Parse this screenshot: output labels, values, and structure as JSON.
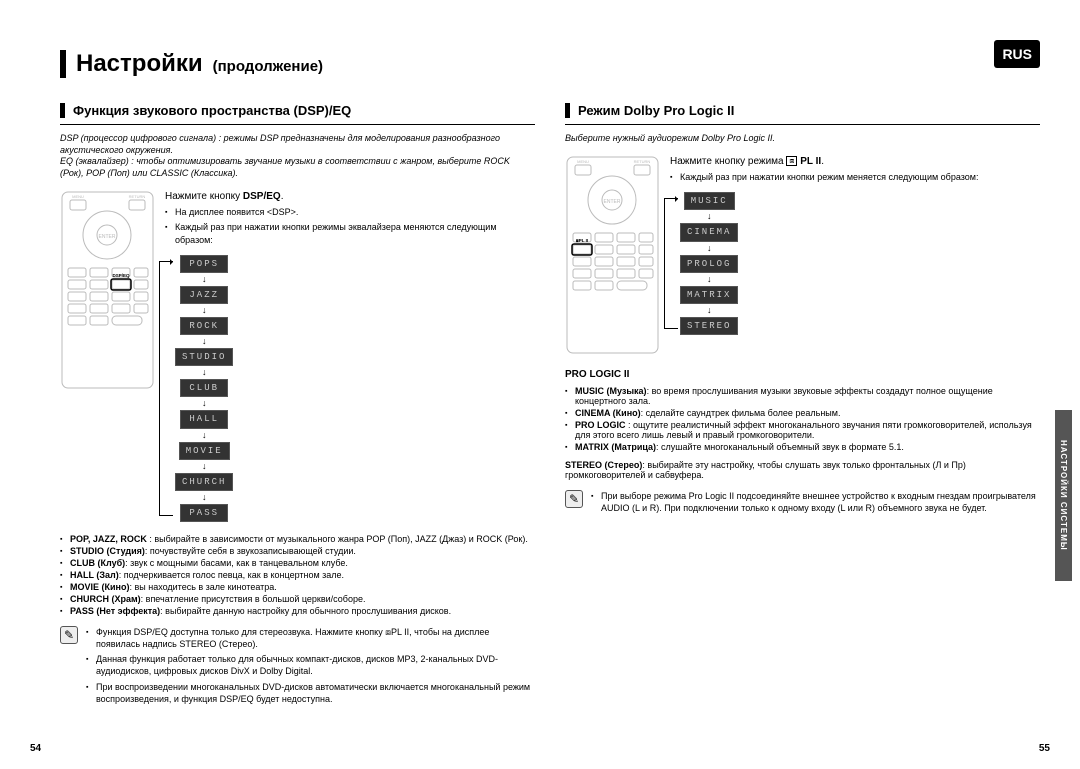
{
  "lang_badge": "RUS",
  "title_main": "Настройки",
  "title_sub": "(продолжение)",
  "side_tab": "НАСТРОЙКИ СИСТЕМЫ",
  "page_left": "54",
  "page_right": "55",
  "left": {
    "heading": "Функция звукового пространства (DSP)/EQ",
    "intro1": "DSP (процессор цифрового сигнала) : режимы DSP предназначены для моделирования разнообразного акустического окружения.",
    "intro2": "EQ (эквалайзер) : чтобы оптимизировать звучание музыки в соответствии с жанром, выберите ROCK (Рок), POP (Поп) или CLASSIC (Классика).",
    "step_prefix": "Нажмите кнопку ",
    "step_bold": "DSP/EQ",
    "step_suffix": ".",
    "sub_bullet1": "На дисплее появится <DSP>.",
    "sub_bullet2": "Каждый раз при нажатии кнопки режимы эквалайзера меняются следующим образом:",
    "modes": [
      "POPS",
      "JAZZ",
      "ROCK",
      "STUDIO",
      "CLUB",
      "HALL",
      "MOVIE",
      "CHURCH",
      "PASS"
    ],
    "defs": [
      {
        "b": "POP, JAZZ, ROCK",
        "t": " : выбирайте в зависимости от музыкального жанра POP (Поп), JAZZ (Джаз) и ROCK (Рок)."
      },
      {
        "b": "STUDIO (Студия)",
        "t": ": почувствуйте себя в звукозаписывающей студии."
      },
      {
        "b": "CLUB (Клуб)",
        "t": ": звук с мощными басами, как в танцевальном клубе."
      },
      {
        "b": "HALL (Зал)",
        "t": ": подчеркивается голос певца, как в концертном зале."
      },
      {
        "b": "MOVIE (Кино)",
        "t": ": вы находитесь в зале кинотеатра."
      },
      {
        "b": "CHURCH (Храм)",
        "t": ": впечатление присутствия в  большой церкви/соборе."
      },
      {
        "b": "PASS (Нет эффекта)",
        "t": ": выбирайте данную настройку для обычного прослушивания дисков."
      }
    ],
    "notes": [
      "Функция DSP/EQ доступна только для стереозвука. Нажмите кнопку ⧈PL II, чтобы на дисплее появилась надпись STEREO (Стерео).",
      "Данная функция работает только для обычных компакт-дисков, дисков MP3, 2-канальных DVD-аудиодисков, цифровых дисков DivX и Dolby Digital.",
      "При воспроизведении многоканальных DVD-дисков автоматически включается многоканальный режим воспроизведения, и функция DSP/EQ будет недоступна."
    ]
  },
  "right": {
    "heading": "Режим Dolby Pro Logic II",
    "intro": "Выберите нужный аудиорежим Dolby Pro Logic II.",
    "step_prefix": "Нажмите кнопку режима ",
    "step_icon": "⧈",
    "step_bold": "PL II",
    "step_suffix": ".",
    "sub_bullet": "Каждый раз при нажатии кнопки режим меняется следующим образом:",
    "modes": [
      "MUSIC",
      "CINEMA",
      "PROLOG",
      "MATRIX",
      "STEREO"
    ],
    "subhead": "PRO LOGIC II",
    "defs": [
      {
        "b": "MUSIC (Музыка)",
        "t": ": во время прослушивания музыки звуковые эффекты создадут полное ощущение концертного зала."
      },
      {
        "b": "CINEMA (Кино)",
        "t": ": сделайте саундтрек фильма более реальным."
      },
      {
        "b": "PRO LOGIC",
        "t": " : ощутите реалистичный эффект многоканального звучания пяти громкоговорителей, используя для этого всего лишь левый и правый громкоговорители."
      },
      {
        "b": "MATRIX (Матрица)",
        "t": ": слушайте многоканальный объемный звук в формате 5.1."
      }
    ],
    "stereo_b": "STEREO (Стерео)",
    "stereo_t": ": выбирайте эту настройку, чтобы слушать звук только фронтальных (Л и Пр) громкоговорителей и сабвуфера.",
    "notes": [
      "При выборе режима Pro Logic II подсоединяйте внешнее устройство к входным гнездам проигрывателя AUDIO (L и R). При подключении только к одному входу (L или R) объемного звука не будет."
    ]
  },
  "colors": {
    "text": "#000000",
    "display_bg": "#333333",
    "display_fg": "#cccccc",
    "badge_bg": "#000000",
    "badge_fg": "#ffffff",
    "sidetab_bg": "#555555"
  }
}
